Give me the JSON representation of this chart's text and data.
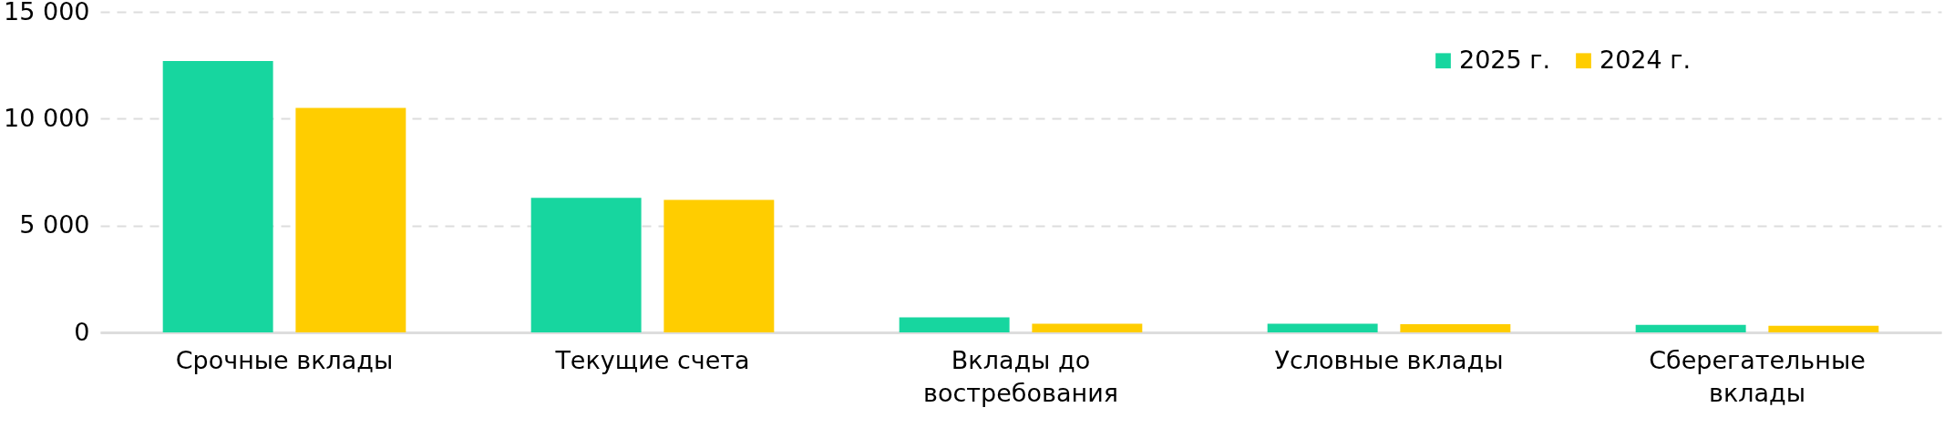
{
  "chart_data": {
    "type": "bar",
    "categories": [
      "Срочные вклады",
      "Текущие счета",
      "Вклады до востребования",
      "Условные вклады",
      "Сберегательные вклады"
    ],
    "series": [
      {
        "name": "2025 г.",
        "color": "#17d69f",
        "values": [
          12700,
          6300,
          700,
          400,
          350
        ]
      },
      {
        "name": "2024 г.",
        "color": "#ffcd00",
        "values": [
          10500,
          6200,
          400,
          380,
          310
        ]
      }
    ],
    "ylim": [
      0,
      15000
    ],
    "yticks": [
      {
        "value": 0,
        "label": "0"
      },
      {
        "value": 5000,
        "label": "5 000"
      },
      {
        "value": 10000,
        "label": "10 000"
      },
      {
        "value": 15000,
        "label": "15 000"
      }
    ],
    "grid": "y",
    "legend": "top right"
  }
}
